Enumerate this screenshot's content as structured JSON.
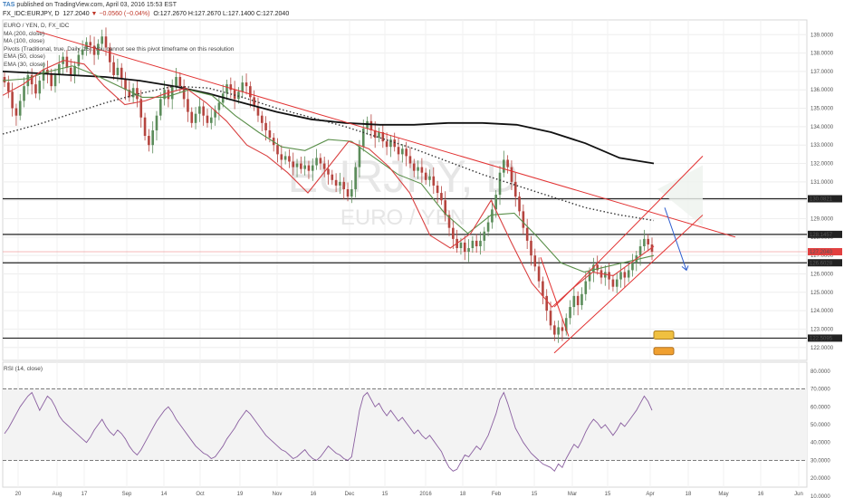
{
  "header": {
    "publisher": "TAS",
    "published_text": " published on TradingView.com, April 03, 2016 15:53 EST",
    "symbol": "FX_IDC:EURJPY, D",
    "last": "127.2040",
    "change": "▼ −0.0560 (−0.04%)",
    "ohlc": "O:127.2670  H:127.2670  L:127.1400  C:127.2040"
  },
  "legend": [
    "EURO / YEN, D, FX_IDC",
    "MA (200, close)",
    "MA (100, close)",
    "Pivots (Traditional, true, Daily, 15): You cannot see this pivot timeframe on this resolution",
    "EMA (50, close)",
    "EMA (30, close)"
  ],
  "watermark": {
    "symbol": "EURJPY, D",
    "name": "EURO / YEN"
  },
  "rsi_label": "RSI (14, close)",
  "colors": {
    "up": "#5b8c5a",
    "down": "#b5453f",
    "trend": "#e23232",
    "ma200": "#111111",
    "ma100": "#333333",
    "ema50": "#5a8f4a",
    "ema30": "#d94040",
    "rsi": "#8a5fa0",
    "forecast": "#2f5fd0",
    "hline": "#222222",
    "price_hl": "#f0a0a0"
  },
  "chart_data": [
    {
      "type": "candlestick",
      "title": "EURO / YEN, D, FX_IDC",
      "ylim": [
        121.3,
        139.8
      ],
      "y_ticks": [
        "139.0000",
        "138.0000",
        "137.0000",
        "136.0000",
        "135.0000",
        "134.0000",
        "133.0000",
        "132.0000",
        "131.0000",
        "130.0000",
        "129.0000",
        "128.0000",
        "127.0000",
        "126.0000",
        "125.0000",
        "124.0000",
        "123.0000",
        "122.0000"
      ],
      "x_ticks": [
        "20",
        "Aug",
        "17",
        "Sep",
        "14",
        "Oct",
        "19",
        "Nov",
        "16",
        "Dec",
        "15",
        "2016",
        "18",
        "Feb",
        "15",
        "Mar",
        "15",
        "Apr",
        "18",
        "May",
        "16",
        "Jun"
      ],
      "price_levels": [
        {
          "label": "130.0821",
          "value": 130.0821
        },
        {
          "label": "128.1457",
          "value": 128.1457
        },
        {
          "label": "127.2040",
          "value": 127.204
        },
        {
          "label": "126.6028",
          "value": 126.6028
        },
        {
          "label": "122.5095",
          "value": 122.5095
        }
      ],
      "close": [
        136.4,
        135.9,
        135.0,
        134.6,
        135.4,
        136.2,
        136.8,
        136.3,
        135.8,
        136.5,
        137.1,
        136.9,
        136.2,
        136.8,
        137.4,
        137.8,
        137.2,
        136.8,
        137.3,
        137.9,
        138.2,
        138.6,
        138.4,
        137.9,
        138.5,
        138.9,
        138.3,
        137.5,
        136.8,
        137.2,
        136.6,
        136.0,
        135.6,
        136.1,
        135.5,
        134.5,
        133.5,
        133.0,
        133.8,
        134.6,
        135.5,
        136.0,
        135.5,
        136.2,
        136.7,
        136.2,
        135.5,
        134.8,
        134.2,
        134.7,
        135.1,
        134.6,
        134.2,
        134.5,
        134.9,
        135.3,
        135.8,
        136.3,
        136.0,
        135.5,
        135.9,
        136.4,
        136.2,
        135.6,
        135.1,
        134.6,
        134.2,
        133.8,
        133.4,
        133.0,
        132.5,
        132.2,
        132.4,
        132.1,
        131.8,
        132.0,
        131.7,
        131.9,
        131.6,
        131.9,
        132.3,
        132.0,
        131.7,
        131.4,
        131.1,
        130.8,
        131.0,
        130.6,
        130.2,
        130.6,
        131.8,
        132.9,
        133.9,
        134.3,
        133.8,
        133.4,
        133.7,
        133.2,
        132.9,
        133.3,
        132.9,
        132.5,
        132.8,
        132.4,
        132.0,
        131.6,
        131.8,
        131.5,
        131.1,
        131.3,
        130.8,
        130.4,
        130.0,
        129.2,
        128.5,
        127.9,
        127.4,
        127.7,
        127.2,
        127.4,
        127.8,
        127.5,
        127.8,
        128.3,
        128.8,
        129.5,
        130.3,
        131.5,
        132.2,
        131.8,
        131.0,
        130.2,
        129.4,
        128.5,
        127.8,
        127.0,
        126.4,
        125.6,
        124.8,
        124.0,
        123.2,
        122.7,
        123.1,
        122.9,
        123.6,
        124.2,
        124.8,
        124.3,
        124.9,
        125.6,
        126.1,
        126.5,
        126.2,
        125.8,
        126.1,
        125.7,
        125.3,
        125.7,
        126.1,
        125.8,
        126.2,
        126.6,
        127.0,
        127.5,
        127.9,
        127.6,
        127.2
      ],
      "series": [
        {
          "name": "MA (200, close)",
          "values": [
            137.0,
            136.9,
            136.8,
            136.7,
            136.5,
            136.2,
            135.8,
            135.3,
            134.8,
            134.4,
            134.2,
            134.1,
            134.1,
            134.2,
            134.2,
            134.1,
            133.7,
            133.1,
            132.3,
            132.0
          ]
        },
        {
          "name": "MA (100, close)",
          "values": [
            133.6,
            134.1,
            134.7,
            135.3,
            135.8,
            136.2,
            136.1,
            135.6,
            135.0,
            134.5,
            134.0,
            133.4,
            132.8,
            132.1,
            131.4,
            130.8,
            130.2,
            129.6,
            129.2,
            128.9
          ]
        },
        {
          "name": "EMA (50, close)",
          "values": [
            136.5,
            136.6,
            137.0,
            137.3,
            136.8,
            136.2,
            135.6,
            135.6,
            136.0,
            135.7,
            134.6,
            133.7,
            132.9,
            132.7,
            133.3,
            133.2,
            132.3,
            131.4,
            130.9,
            129.3,
            128.2,
            129.2,
            129.3,
            128.0,
            126.6,
            126.1,
            126.4,
            126.7,
            127.0
          ]
        },
        {
          "name": "EMA (30, close)",
          "values": [
            135.7,
            136.3,
            137.1,
            137.6,
            137.4,
            136.2,
            135.2,
            135.4,
            135.8,
            136.1,
            135.3,
            134.3,
            133.0,
            132.4,
            131.5,
            130.4,
            131.8,
            133.2,
            132.8,
            131.8,
            130.4,
            128.1,
            127.4,
            128.2,
            130.0,
            127.7,
            125.5,
            124.2,
            125.2,
            126.1,
            125.9,
            126.7,
            127.5
          ]
        }
      ],
      "trendlines": [
        "falling resistance",
        "rising channel"
      ],
      "forecast": "arrow down toward 126.6"
    },
    {
      "type": "line",
      "title": "RSI (14, close)",
      "ylim": [
        15,
        85
      ],
      "y_ticks": [
        "80.0000",
        "70.0000",
        "60.0000",
        "50.0000",
        "40.0000",
        "30.0000",
        "20.0000",
        "10.0000"
      ],
      "levels": [
        70,
        30
      ],
      "values": [
        45,
        48,
        52,
        56,
        60,
        63,
        66,
        68,
        63,
        58,
        62,
        66,
        64,
        60,
        55,
        52,
        50,
        48,
        46,
        44,
        42,
        40,
        43,
        47,
        50,
        53,
        49,
        46,
        44,
        47,
        45,
        42,
        38,
        35,
        33,
        36,
        40,
        44,
        48,
        52,
        55,
        58,
        60,
        57,
        53,
        50,
        47,
        44,
        41,
        38,
        36,
        34,
        33,
        31,
        32,
        35,
        38,
        42,
        45,
        48,
        52,
        55,
        58,
        56,
        53,
        50,
        47,
        44,
        42,
        40,
        38,
        36,
        35,
        33,
        31,
        32,
        34,
        36,
        33,
        31,
        30,
        32,
        35,
        38,
        36,
        34,
        33,
        31,
        30,
        32,
        45,
        58,
        66,
        68,
        64,
        60,
        62,
        58,
        55,
        58,
        55,
        52,
        54,
        51,
        48,
        45,
        47,
        44,
        42,
        44,
        41,
        38,
        35,
        30,
        26,
        24,
        25,
        29,
        33,
        32,
        35,
        38,
        36,
        40,
        44,
        50,
        56,
        64,
        68,
        62,
        55,
        48,
        44,
        40,
        37,
        34,
        32,
        30,
        28,
        27,
        26,
        24,
        28,
        26,
        31,
        35,
        39,
        37,
        41,
        46,
        50,
        53,
        51,
        48,
        50,
        47,
        44,
        47,
        51,
        49,
        52,
        55,
        58,
        62,
        66,
        63,
        58
      ]
    }
  ]
}
